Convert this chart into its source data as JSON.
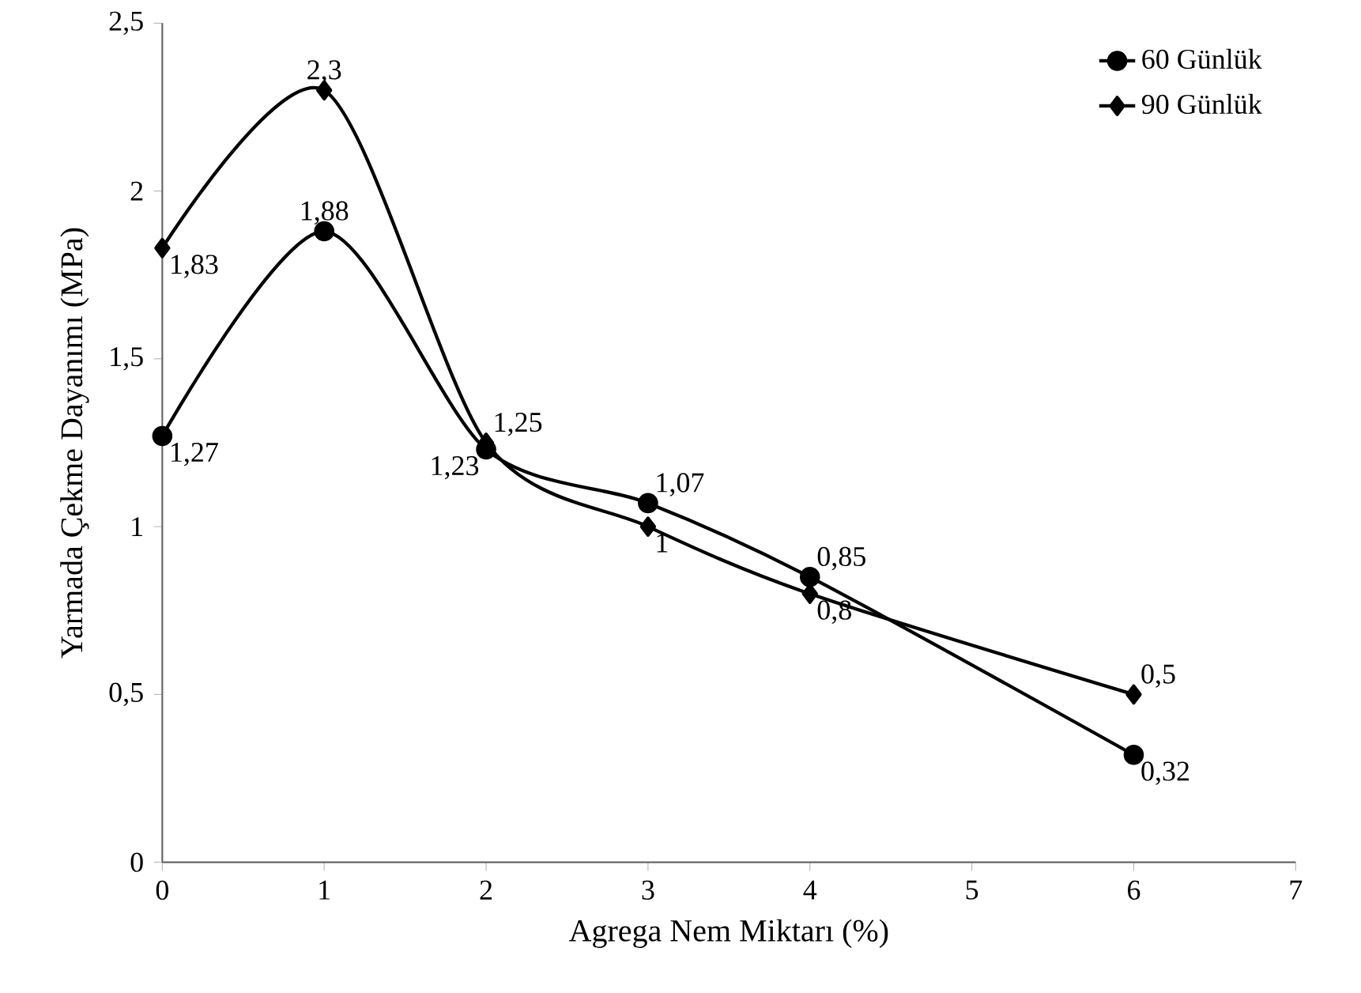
{
  "chart_data": {
    "type": "line",
    "xlabel": "Agrega Nem Miktarı (%)",
    "ylabel": "Yarmada Çekme Dayanımı (MPa)",
    "x": [
      0,
      1,
      2,
      3,
      4,
      6
    ],
    "series": [
      {
        "name": "60 Günlük",
        "color": "#000000",
        "marker": "circle",
        "values": [
          1.27,
          1.88,
          1.23,
          1.07,
          0.85,
          0.32
        ],
        "value_labels": [
          "1,27",
          "1,88",
          "1,23",
          "1,07",
          "0,85",
          "0,32"
        ]
      },
      {
        "name": "90 Günlük",
        "color": "#000000",
        "marker": "diamond",
        "values": [
          1.83,
          2.3,
          1.25,
          1.0,
          0.8,
          0.5
        ],
        "value_labels": [
          "1,83",
          "2,3",
          "1,25",
          "1",
          "0,8",
          "0,5"
        ]
      }
    ],
    "xlim": [
      0,
      7
    ],
    "xticks": [
      0,
      1,
      2,
      3,
      4,
      5,
      6,
      7
    ],
    "ylim": [
      0,
      2.5
    ],
    "yticks": [
      0,
      {
        "value": 0.5,
        "label": "0,5"
      },
      1,
      {
        "value": 1.5,
        "label": "1,5"
      },
      2,
      {
        "value": 2.5,
        "label": "2,5"
      }
    ],
    "legend": "top right",
    "grid": false,
    "line_style": "solid"
  }
}
